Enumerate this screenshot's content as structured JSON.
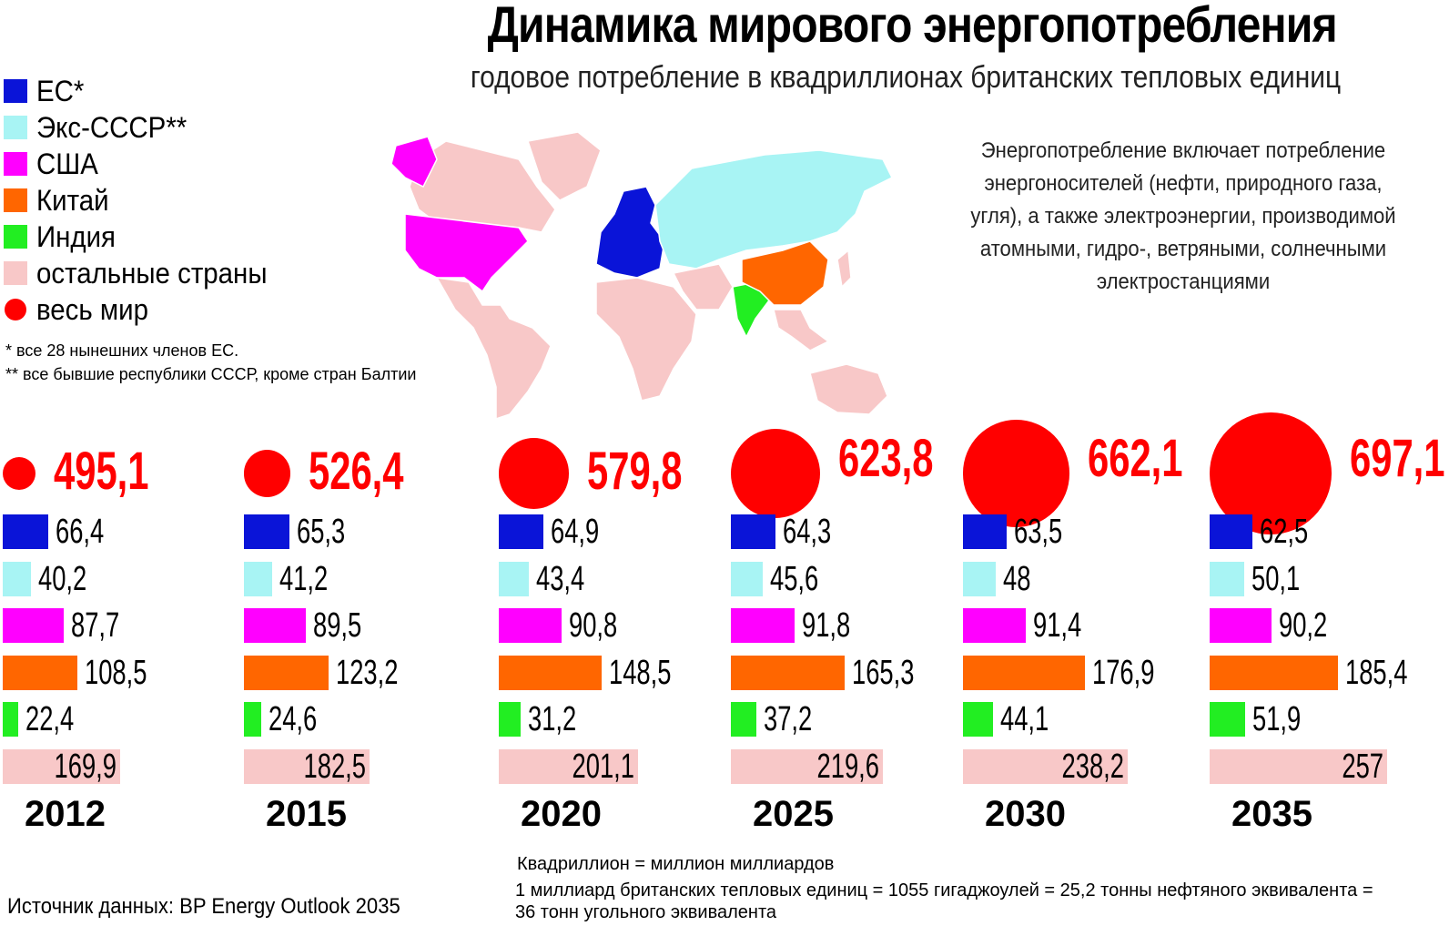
{
  "title": "Динамика мирового энергопотребления",
  "subtitle": "годовое потребление в квадриллионах британских тепловых единиц",
  "legend": [
    {
      "label": "ЕС*",
      "color": "#0a14d8",
      "shape": "square"
    },
    {
      "label": "Экс-СССР**",
      "color": "#a8f4f4",
      "shape": "square"
    },
    {
      "label": "США",
      "color": "#ff00ff",
      "shape": "square"
    },
    {
      "label": "Китай",
      "color": "#ff6600",
      "shape": "square"
    },
    {
      "label": "Индия",
      "color": "#22ee22",
      "shape": "square"
    },
    {
      "label": "остальные страны",
      "color": "#f8c8c8",
      "shape": "square"
    },
    {
      "label": "весь мир",
      "color": "#ff0000",
      "shape": "circle"
    }
  ],
  "footnotes": {
    "eu": "* все 28 нынешних членов ЕС.",
    "ussr": "** все бывшие республики СССР, кроме стран Балтии"
  },
  "info_text": "Энергопотребление включает потребление энергоносителей (нефти, природного газа, угля), а также электроэнергии, производимой атомными, гидро-, ветряными, солнечными электростанциями",
  "map_icons": "world-map-icon",
  "source": "Источник данных: BP Energy Outlook 2035",
  "notes": {
    "quadrillion": "Квадриллион = миллион миллиардов",
    "btu_line1": "1 миллиард британских тепловых единиц = 1055 гигаджоулей = 25,2 тонны нефтяного эквивалента =",
    "btu_line2": "36 тонн угольного эквивалента"
  },
  "chart_data": {
    "type": "bar",
    "categories": [
      "ЕС*",
      "Экс-СССР**",
      "США",
      "Китай",
      "Индия",
      "остальные страны"
    ],
    "series_colors": [
      "#0a14d8",
      "#a8f4f4",
      "#ff00ff",
      "#ff6600",
      "#22ee22",
      "#f8c8c8"
    ],
    "years": [
      {
        "year": "2012",
        "total": "495,1",
        "total_value": 495.1,
        "values": [
          66.4,
          40.2,
          87.7,
          108.5,
          22.4,
          169.9
        ],
        "labels": [
          "66,4",
          "40,2",
          "87,7",
          "108,5",
          "22,4",
          "169,9"
        ]
      },
      {
        "year": "2015",
        "total": "526,4",
        "total_value": 526.4,
        "values": [
          65.3,
          41.2,
          89.5,
          123.2,
          24.6,
          182.5
        ],
        "labels": [
          "65,3",
          "41,2",
          "89,5",
          "123,2",
          "24,6",
          "182,5"
        ]
      },
      {
        "year": "2020",
        "total": "579,8",
        "total_value": 579.8,
        "values": [
          64.9,
          43.4,
          90.8,
          148.5,
          31.2,
          201.1
        ],
        "labels": [
          "64,9",
          "43,4",
          "90,8",
          "148,5",
          "31,2",
          "201,1"
        ]
      },
      {
        "year": "2025",
        "total": "623,8",
        "total_value": 623.8,
        "values": [
          64.3,
          45.6,
          91.8,
          165.3,
          37.2,
          219.6
        ],
        "labels": [
          "64,3",
          "45,6",
          "91,8",
          "165,3",
          "37,2",
          "219,6"
        ]
      },
      {
        "year": "2030",
        "total": "662,1",
        "total_value": 662.1,
        "values": [
          63.5,
          48,
          91.4,
          176.9,
          44.1,
          238.2
        ],
        "labels": [
          "63,5",
          "48",
          "91,4",
          "176,9",
          "44,1",
          "238,2"
        ]
      },
      {
        "year": "2035",
        "total": "697,1",
        "total_value": 697.1,
        "values": [
          62.5,
          50.1,
          90.2,
          185.4,
          51.9,
          257
        ],
        "labels": [
          "62,5",
          "50,1",
          "90,2",
          "185,4",
          "51,9",
          "257"
        ]
      }
    ]
  }
}
